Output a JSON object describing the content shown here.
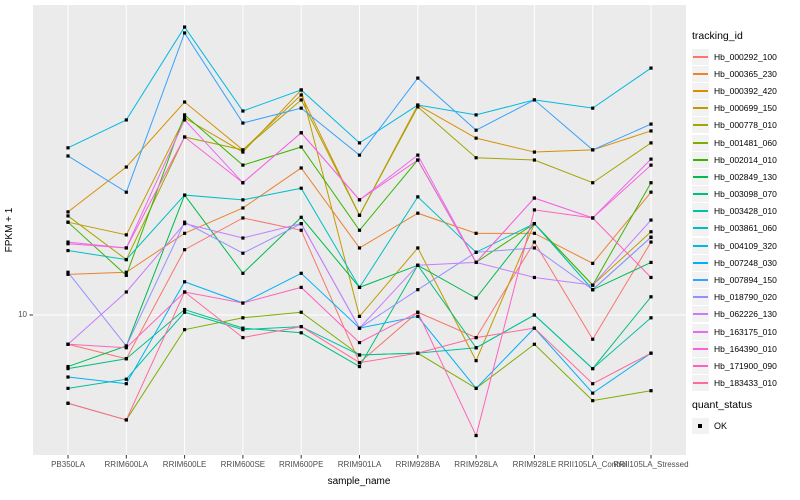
{
  "y_axis": {
    "title": "FPKM + 1",
    "tick_label": "10"
  },
  "x_axis": {
    "title": "sample_name"
  },
  "legend": {
    "tracking_title": "tracking_id",
    "quant_title": "quant_status",
    "quant_items": [
      {
        "label": "OK",
        "marker": "black-square"
      }
    ]
  },
  "panel": {
    "background": "#EBEBEB",
    "gridline_color": "#FFFFFF",
    "tick_color": "#333333",
    "tick_text_color": "#4D4D4D"
  },
  "chart_data": {
    "type": "line",
    "title": "",
    "xlabel": "sample_name",
    "ylabel": "FPKM + 1",
    "y_scale": "log10",
    "y_ticks": [
      10
    ],
    "ylim": [
      3.6,
      93
    ],
    "grid": true,
    "legend_position": "right",
    "point_marker": "filled-square-black",
    "categories": [
      "PB350LA",
      "RRIM600LA",
      "RRIM600LE",
      "RRIM600SE",
      "RRIM600PE",
      "RRIM901LA",
      "RRIM928BA",
      "RRIM928LA",
      "RRIM928LE",
      "RRII105LA_Control",
      "RRII105LA_Stressed"
    ],
    "series": [
      {
        "name": "Hb_000292_100",
        "color": "#F8766D",
        "values": [
          8.1,
          7.3,
          16.0,
          20.1,
          18.4,
          7.1,
          10.2,
          8.5,
          16.9,
          8.4,
          16.9
        ]
      },
      {
        "name": "Hb_000365_230",
        "color": "#EA8331",
        "values": [
          13.4,
          13.6,
          18.0,
          21.6,
          28.8,
          16.2,
          20.8,
          18.0,
          18.0,
          14.5,
          24.2
        ]
      },
      {
        "name": "Hb_000392_420",
        "color": "#D89000",
        "values": [
          21.0,
          29.0,
          46.3,
          32.8,
          48.7,
          20.5,
          45.3,
          35.7,
          32.3,
          32.8,
          37.6
        ]
      },
      {
        "name": "Hb_000699_150",
        "color": "#C09B00",
        "values": [
          19.5,
          17.8,
          41.3,
          32.3,
          50.5,
          9.9,
          16.2,
          7.2,
          19.3,
          12.4,
          18.2
        ]
      },
      {
        "name": "Hb_000778_010",
        "color": "#A3A500",
        "values": [
          20.4,
          14.9,
          36.0,
          32.8,
          47.0,
          20.5,
          44.7,
          31.0,
          30.5,
          25.9,
          34.5
        ]
      },
      {
        "name": "Hb_001481_060",
        "color": "#7CAE00",
        "values": [
          5.3,
          4.7,
          9.0,
          9.8,
          10.2,
          7.5,
          7.6,
          5.9,
          8.1,
          5.4,
          5.8
        ]
      },
      {
        "name": "Hb_002014_010",
        "color": "#39B600",
        "values": [
          19.5,
          13.3,
          42.2,
          29.4,
          33.5,
          18.4,
          30.5,
          14.6,
          19.3,
          12.4,
          25.9
        ]
      },
      {
        "name": "Hb_002849_130",
        "color": "#00BB4E",
        "values": [
          6.9,
          8.0,
          23.7,
          13.5,
          20.2,
          12.2,
          14.3,
          11.3,
          19.3,
          12.0,
          14.6
        ]
      },
      {
        "name": "Hb_003098_070",
        "color": "#00BF7D",
        "values": [
          6.8,
          7.3,
          10.4,
          9.1,
          8.8,
          6.9,
          14.3,
          7.9,
          10.0,
          6.8,
          11.4
        ]
      },
      {
        "name": "Hb_003428_010",
        "color": "#00C1A3",
        "values": [
          5.9,
          6.3,
          10.2,
          9.0,
          9.2,
          7.5,
          7.6,
          7.9,
          10.0,
          6.8,
          9.8
        ]
      },
      {
        "name": "Hb_003861_060",
        "color": "#00BFC4",
        "values": [
          15.9,
          14.9,
          23.7,
          22.9,
          24.9,
          12.2,
          23.4,
          15.7,
          19.3,
          12.0,
          17.5
        ]
      },
      {
        "name": "Hb_004109_320",
        "color": "#00BAE0",
        "values": [
          33.3,
          40.7,
          79.4,
          43.4,
          50.5,
          34.5,
          45.3,
          42.2,
          47.0,
          44.3,
          59.1
        ]
      },
      {
        "name": "Hb_007248_030",
        "color": "#00B0F6",
        "values": [
          6.4,
          6.1,
          12.7,
          10.9,
          13.5,
          9.1,
          9.9,
          5.9,
          9.1,
          5.7,
          7.6
        ]
      },
      {
        "name": "Hb_007894_150",
        "color": "#35A2FF",
        "values": [
          31.4,
          24.2,
          76.1,
          39.8,
          44.3,
          31.6,
          55.0,
          37.8,
          47.0,
          32.8,
          39.5
        ]
      },
      {
        "name": "Hb_018790_020",
        "color": "#9590FF",
        "values": [
          13.6,
          8.0,
          19.5,
          15.6,
          19.3,
          9.1,
          12.0,
          15.7,
          16.2,
          12.0,
          17.5
        ]
      },
      {
        "name": "Hb_062226_130",
        "color": "#C77CFF",
        "values": [
          8.1,
          11.8,
          19.3,
          17.4,
          19.3,
          9.1,
          14.3,
          14.6,
          13.1,
          12.4,
          19.8
        ]
      },
      {
        "name": "Hb_163175_010",
        "color": "#E76BF3",
        "values": [
          16.9,
          16.2,
          40.7,
          25.9,
          37.1,
          22.9,
          31.6,
          14.6,
          23.2,
          20.1,
          30.7
        ]
      },
      {
        "name": "Hb_164390_010",
        "color": "#FA62DB",
        "values": [
          16.7,
          16.2,
          36.0,
          25.9,
          37.1,
          22.9,
          30.5,
          14.6,
          23.2,
          20.1,
          29.4
        ]
      },
      {
        "name": "Hb_171900_090",
        "color": "#FF62BC",
        "values": [
          8.1,
          7.9,
          11.8,
          10.9,
          12.2,
          8.2,
          10.2,
          4.2,
          21.3,
          20.1,
          13.1
        ]
      },
      {
        "name": "Hb_183433_010",
        "color": "#FF6A98",
        "values": [
          5.3,
          4.7,
          11.8,
          8.5,
          9.2,
          7.1,
          7.6,
          8.5,
          9.1,
          6.1,
          7.6
        ]
      }
    ]
  }
}
